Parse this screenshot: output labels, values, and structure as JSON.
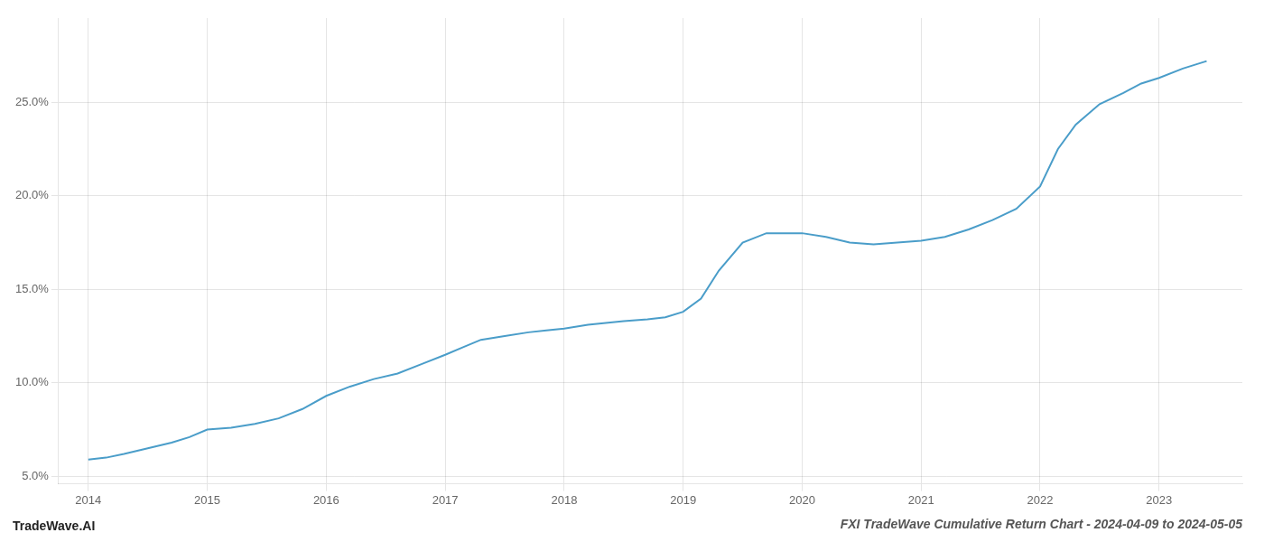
{
  "chart_data": {
    "type": "line",
    "title": "FXI TradeWave Cumulative Return Chart - 2024-04-09 to 2024-05-05",
    "annotations": [
      {
        "text": "TradeWave.AI"
      }
    ],
    "x": [
      2014.0,
      2014.15,
      2014.3,
      2014.5,
      2014.7,
      2014.85,
      2015.0,
      2015.2,
      2015.4,
      2015.6,
      2015.8,
      2016.0,
      2016.2,
      2016.4,
      2016.6,
      2016.8,
      2017.0,
      2017.15,
      2017.3,
      2017.5,
      2017.7,
      2017.85,
      2018.0,
      2018.2,
      2018.5,
      2018.7,
      2018.85,
      2019.0,
      2019.15,
      2019.3,
      2019.5,
      2019.7,
      2019.85,
      2020.0,
      2020.2,
      2020.4,
      2020.6,
      2020.8,
      2021.0,
      2021.2,
      2021.4,
      2021.6,
      2021.8,
      2022.0,
      2022.15,
      2022.3,
      2022.5,
      2022.7,
      2022.85,
      2023.0,
      2023.2,
      2023.4
    ],
    "values": [
      5.9,
      6.0,
      6.2,
      6.5,
      6.8,
      7.1,
      7.5,
      7.6,
      7.8,
      8.1,
      8.6,
      9.3,
      9.8,
      10.2,
      10.5,
      11.0,
      11.5,
      11.9,
      12.3,
      12.5,
      12.7,
      12.8,
      12.9,
      13.1,
      13.3,
      13.4,
      13.5,
      13.8,
      14.5,
      16.0,
      17.5,
      18.0,
      18.0,
      18.0,
      17.8,
      17.5,
      17.4,
      17.5,
      17.6,
      17.8,
      18.2,
      18.7,
      19.3,
      20.5,
      22.5,
      23.8,
      24.9,
      25.5,
      26.0,
      26.3,
      26.8,
      27.2
    ],
    "color": "#4a9dc9",
    "xlim": [
      2013.75,
      2023.7
    ],
    "xticks": [
      2014,
      2015,
      2016,
      2017,
      2018,
      2019,
      2020,
      2021,
      2022,
      2023
    ],
    "ylim": [
      4.6,
      29.5
    ],
    "yticks": [
      {
        "value": 5.0,
        "label": "5.0%"
      },
      {
        "value": 10.0,
        "label": "10.0%"
      },
      {
        "value": 15.0,
        "label": "15.0%"
      },
      {
        "value": 20.0,
        "label": "20.0%"
      },
      {
        "value": 25.0,
        "label": "25.0%"
      }
    ],
    "grid": true
  }
}
